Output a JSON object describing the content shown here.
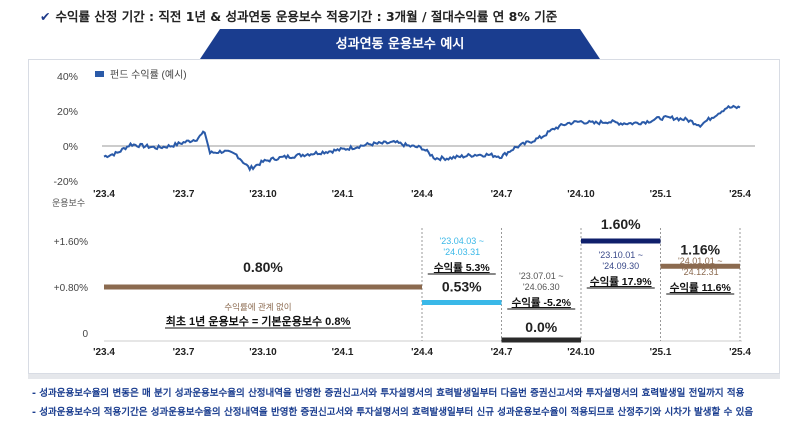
{
  "header": {
    "check_icon": "checkmark-icon",
    "text": "수익률 산정 기간 : 직전 1년 & 성과연동 운용보수 적용기간 : 3개월 / 절대수익률 연 8% 기준"
  },
  "banner": {
    "title": "성과연동 운용보수 예시"
  },
  "chart_data": [
    {
      "type": "line",
      "title": "",
      "legend": [
        "펀드 수익률 (예시)"
      ],
      "legend_position": "top-left",
      "ylim": [
        -20,
        40
      ],
      "yticks": [
        "40%",
        "20%",
        "0%",
        "-20%"
      ],
      "ytick_values": [
        40,
        20,
        0,
        -20
      ],
      "xticks": [
        "'23.4",
        "'23.7",
        "'23.10",
        "'24.1",
        "'24.4",
        "'24.7",
        "'24.10",
        "'25.1",
        "'25.4"
      ],
      "series": [
        {
          "name": "펀드 수익률 (예시)",
          "color": "#2a5aa8",
          "x_months": [
            0,
            0.5,
            1,
            1.5,
            2,
            2.5,
            3,
            3.5,
            3.8,
            4,
            4.5,
            5,
            5.5,
            6,
            6.5,
            7,
            7.5,
            8,
            9,
            10,
            11,
            11.5,
            12,
            12.5,
            13,
            13.5,
            14,
            14.5,
            15,
            15.5,
            16,
            16.5,
            17,
            17.5,
            18,
            18.5,
            19,
            19.5,
            20,
            20.5,
            21,
            21.5,
            22,
            22.5,
            23,
            23.5,
            24
          ],
          "values": [
            -6,
            -4,
            1,
            0,
            -1,
            0,
            2,
            4,
            8,
            -4,
            -3,
            -5,
            -13,
            -9,
            -7,
            -6,
            -5,
            -4,
            -2,
            1,
            2,
            0,
            -1,
            -7,
            -7,
            -6,
            -5,
            -5,
            -6,
            -1,
            2,
            5,
            10,
            13,
            14,
            13,
            14,
            13,
            13,
            14,
            16,
            16,
            15,
            12,
            17,
            22,
            22
          ]
        }
      ],
      "zero_line": true
    },
    {
      "type": "step",
      "ylabel": "운용보수",
      "yticks": [
        "+1.60%",
        "+0.80%",
        "0"
      ],
      "ytick_values": [
        1.6,
        0.8,
        0
      ],
      "xticks": [
        "'23.4",
        "'23.7",
        "'23.10",
        "'24.1",
        "'24.4",
        "'24.7",
        "'24.10",
        "'25.1",
        "'25.4"
      ],
      "segments": [
        {
          "from_month": 0,
          "to_month": 12,
          "fee": 0.8,
          "label": "0.80%",
          "color": "#8b6a4f"
        },
        {
          "from_month": 12,
          "to_month": 15,
          "fee": 0.53,
          "label": "0.53%",
          "color": "#3ab8e8",
          "period": "'23.04.03 ~ '24.03.31",
          "period_lines": [
            "'23.04.03 ~",
            "'24.03.31"
          ],
          "return": "수익률 5.3%"
        },
        {
          "from_month": 15,
          "to_month": 18,
          "fee": 0.0,
          "label": "0.0%",
          "color": "#2a2a2a",
          "period": "'23.07.01 ~ '24.06.30",
          "period_lines": [
            "'23.07.01 ~",
            "'24.06.30"
          ],
          "return": "수익률 -5.2%"
        },
        {
          "from_month": 18,
          "to_month": 21,
          "fee": 1.6,
          "label": "1.60%",
          "color": "#0f1f6b",
          "period": "'23.10.01 ~ '24.09.30",
          "period_lines": [
            "'23.10.01 ~",
            "'24.09.30"
          ],
          "return": "수익률 17.9%"
        },
        {
          "from_month": 21,
          "to_month": 24,
          "fee": 1.16,
          "label": "1.16%",
          "color": "#8b6a4f",
          "period": "'24.01.01 ~ '24.12.31",
          "period_lines": [
            "'24.01.01 ~",
            "'24.12.31"
          ],
          "return": "수익률 11.6%"
        }
      ],
      "annotation_small": "수익률에 관계 없이",
      "annotation_main": "최초 1년 운용보수 = 기본운용보수 0.8%"
    }
  ],
  "notes": [
    "- 성과운용보수율의 변동은 매 분기 성과운용보수율의 산정내역을 반영한 증권신고서와 투자설명서의 효력발생일부터 다음번 증권신고서와 투자설명서의 효력발생일 전일까지 적용",
    "- 성과운용보수의 적용기간은 성과운용보수율의 산정내역을 반영한 증권신고서와 투자설명서의 효력발생일부터 신규 성과운용보수율이 적용되므로 산정주기와 시차가 발생할 수 있음"
  ]
}
